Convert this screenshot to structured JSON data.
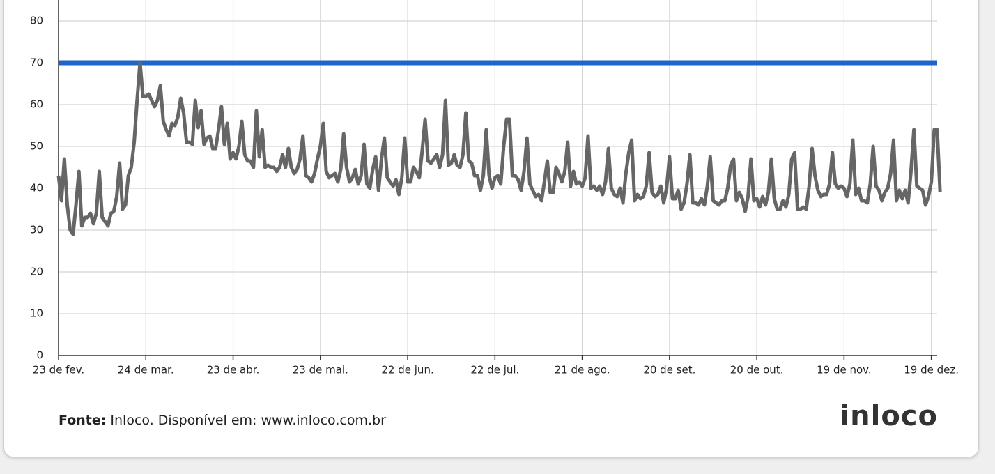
{
  "chart_data": {
    "type": "line",
    "xlim": [
      0,
      302
    ],
    "ylim": [
      0,
      85
    ],
    "xticks": [
      {
        "value": 0,
        "label": "23 de fev."
      },
      {
        "value": 30,
        "label": "24 de mar."
      },
      {
        "value": 60,
        "label": "23 de abr."
      },
      {
        "value": 90,
        "label": "23 de mai."
      },
      {
        "value": 120,
        "label": "22 de jun."
      },
      {
        "value": 150,
        "label": "22 de jul."
      },
      {
        "value": 180,
        "label": "21 de ago."
      },
      {
        "value": 210,
        "label": "20 de set."
      },
      {
        "value": 240,
        "label": "20 de out."
      },
      {
        "value": 270,
        "label": "19 de nov."
      },
      {
        "value": 300,
        "label": "19 de dez."
      }
    ],
    "yticks": [
      0,
      10,
      20,
      30,
      40,
      50,
      60,
      70,
      80
    ],
    "grid": true,
    "reference_line": {
      "value": 70,
      "color": "#1f64c8"
    },
    "series": [
      {
        "color": "#666666",
        "values": [
          43,
          37,
          47,
          36,
          30,
          29,
          36,
          44,
          31,
          33,
          33,
          34,
          31.5,
          34,
          44,
          33,
          32,
          31,
          34,
          34.5,
          38,
          46,
          35,
          36,
          43,
          45,
          51,
          61,
          70,
          62,
          62,
          62.5,
          61,
          59.5,
          61,
          64.5,
          56,
          54,
          52.5,
          55.5,
          55,
          57,
          61.5,
          58,
          51,
          51,
          50.5,
          61,
          54.5,
          58.5,
          50.5,
          52,
          52.5,
          49.5,
          49.5,
          54,
          59.5,
          50.5,
          55.5,
          47,
          48.5,
          47,
          50,
          56,
          48,
          46.5,
          46.5,
          45,
          58.5,
          47.5,
          54,
          45,
          45.5,
          45,
          45,
          44,
          45,
          48,
          45,
          49.5,
          45,
          43.5,
          44.5,
          47,
          52.5,
          43,
          42.5,
          41.5,
          43.5,
          47,
          50,
          55.5,
          44,
          42.5,
          43,
          43.5,
          41.5,
          44.5,
          53,
          45,
          41.5,
          42.5,
          44.5,
          41,
          43,
          50.5,
          41,
          40,
          44.5,
          47.5,
          39.5,
          47,
          52,
          42.5,
          41.5,
          40.5,
          42,
          38.5,
          42.5,
          52,
          41.5,
          41.5,
          45,
          44,
          42.5,
          49,
          56.5,
          46.5,
          46,
          47,
          48,
          45,
          48,
          61,
          45.5,
          46,
          48,
          45.5,
          45,
          48,
          58,
          46.5,
          46,
          43,
          43,
          39.5,
          43,
          54,
          43,
          40,
          42.5,
          43,
          41,
          50,
          56.5,
          56.5,
          43,
          43,
          42,
          39.5,
          44,
          52,
          41,
          39.5,
          38,
          38.5,
          37,
          41.5,
          46.5,
          39,
          39,
          45,
          43.5,
          41.5,
          44,
          51,
          40.5,
          44,
          41,
          41.5,
          40.5,
          42.5,
          52.5,
          40,
          40.5,
          39.5,
          40.5,
          38.5,
          41.5,
          49.5,
          40,
          38.5,
          38,
          40,
          36.5,
          43.5,
          48.5,
          51.5,
          37,
          38.5,
          37.5,
          38,
          40.5,
          48.5,
          39,
          38,
          38.5,
          40.5,
          36.5,
          40,
          47.5,
          37.5,
          37.5,
          39.5,
          35,
          36.5,
          41,
          48,
          36.5,
          36.5,
          36,
          37.5,
          36,
          40.5,
          47.5,
          37,
          36.5,
          36,
          37,
          37,
          40,
          45.5,
          47,
          37,
          39,
          37.5,
          34.5,
          38,
          47,
          37,
          37.5,
          35.5,
          38,
          36,
          39,
          47,
          37.5,
          35,
          35,
          37,
          35.5,
          38.5,
          47,
          48.5,
          35,
          35,
          35.5,
          35,
          40.5,
          49.5,
          43,
          39.5,
          38,
          38.5,
          38.5,
          41,
          48.5,
          41,
          40,
          40.5,
          40,
          38,
          41,
          51.5,
          38.5,
          40,
          37,
          37,
          36.5,
          41,
          50,
          40.5,
          39.5,
          37,
          39,
          40,
          43.5,
          51.5,
          37,
          39.5,
          37.5,
          39.5,
          36.5,
          44,
          54,
          40.5,
          40,
          39.5,
          36,
          38,
          41.5,
          54,
          54,
          39
        ]
      }
    ]
  },
  "footer": {
    "source_label": "Fonte:",
    "source_text": "Inloco. Disponível em: www.inloco.com.br",
    "logo": "inloco"
  }
}
